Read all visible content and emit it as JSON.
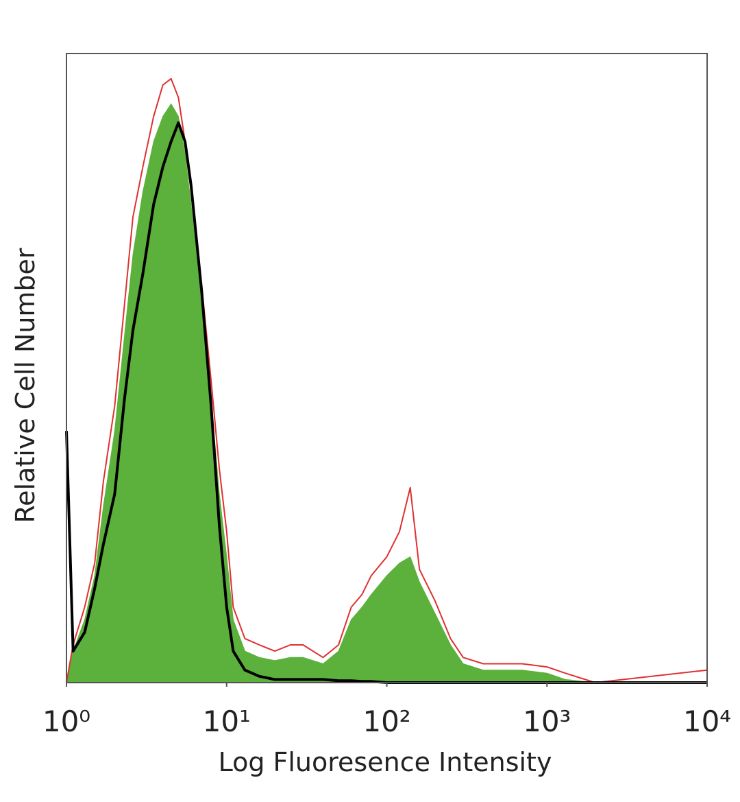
{
  "chart_data": {
    "type": "histogram-overlay",
    "xlabel": "Log Fluoresence Intensity",
    "ylabel": "Relative Cell Number",
    "xscale": "log",
    "xlim": [
      1,
      10000
    ],
    "xticks": [
      {
        "value": 1,
        "label": "10⁰"
      },
      {
        "value": 10,
        "label": "10¹"
      },
      {
        "value": 100,
        "label": "10²"
      },
      {
        "value": 1000,
        "label": "10³"
      },
      {
        "value": 10000,
        "label": "10⁴"
      }
    ],
    "ylim": [
      0,
      100
    ],
    "x": [
      1,
      1.1,
      1.3,
      1.5,
      1.7,
      2,
      2.3,
      2.6,
      3,
      3.5,
      4,
      4.5,
      5,
      5.5,
      6,
      7,
      8,
      9,
      10,
      11,
      13,
      16,
      20,
      25,
      30,
      40,
      50,
      60,
      70,
      80,
      100,
      120,
      140,
      160,
      200,
      250,
      300,
      400,
      500,
      700,
      1000,
      1300,
      2000,
      10000
    ],
    "series": [
      {
        "color": "#5cb03c",
        "fill": true,
        "values": [
          0,
          5,
          10,
          17,
          28,
          40,
          55,
          68,
          78,
          86,
          90,
          92,
          90,
          84,
          76,
          60,
          45,
          30,
          20,
          10,
          5,
          4,
          3.5,
          4,
          4,
          3,
          5,
          10,
          12,
          14,
          17,
          19,
          20,
          16,
          11,
          6,
          3,
          2,
          2,
          2,
          1.5,
          0.5,
          0,
          0
        ]
      },
      {
        "color": "#e03030",
        "fill": false,
        "values": [
          0,
          6,
          12,
          19,
          32,
          44,
          60,
          74,
          82,
          90,
          95,
          96,
          93,
          86,
          78,
          63,
          48,
          34,
          24,
          12,
          7,
          6,
          5,
          6,
          6,
          4,
          6,
          12,
          14,
          17,
          20,
          24,
          31,
          18,
          13,
          7,
          4,
          3,
          3,
          3,
          2.5,
          1.5,
          0,
          2
        ]
      },
      {
        "color": "#000000",
        "fill": false,
        "values": [
          40,
          5,
          8,
          15,
          22,
          30,
          45,
          56,
          65,
          76,
          82,
          86,
          89,
          86,
          79,
          62,
          44,
          25,
          12,
          5,
          2,
          1,
          0.5,
          0.5,
          0.5,
          0.5,
          0.3,
          0.3,
          0.2,
          0.2,
          0,
          0,
          0,
          0,
          0,
          0,
          0,
          0,
          0,
          0,
          0,
          0,
          0,
          0
        ]
      }
    ]
  }
}
